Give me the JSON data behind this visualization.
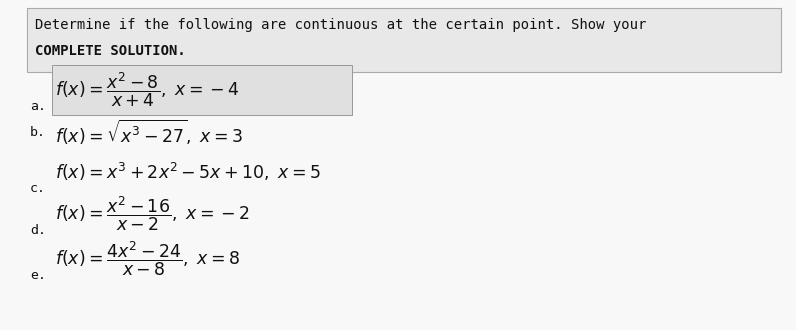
{
  "title_line1": "Determine if the following are continuous at the certain point. Show your",
  "title_line2": "COMPLETE SOLUTION.",
  "text_color": "#111111",
  "header_bg": "#e8e8e8",
  "header_border": "#aaaaaa",
  "item_box_bg": "#e0e0e0",
  "item_box_border": "#999999",
  "page_bg": "#f8f8f8",
  "items": [
    {
      "label": "a.",
      "math": "$f(x) = \\dfrac{x^2-8}{x+4},\\ x = -4$",
      "boxed": true,
      "label_below": true
    },
    {
      "label": "b.",
      "math": "$f(x) = \\sqrt{x^3 - 27},\\ x = 3$",
      "boxed": false,
      "label_below": false
    },
    {
      "label": "c.",
      "math": "$f(x) = x^3 + 2x^2 - 5x + 10,\\ x = 5$",
      "boxed": false,
      "label_below": true
    },
    {
      "label": "d.",
      "math": "$f(x) = \\dfrac{x^2-16}{x-2},\\ x = -2$",
      "boxed": false,
      "label_below": true
    },
    {
      "label": "e.",
      "math": "$f(x) = \\dfrac{4x^2-24}{x-8},\\ x = 8$",
      "boxed": false,
      "label_below": true
    }
  ],
  "header_fontsize": 10.0,
  "item_fontsize": 12.5,
  "label_fontsize": 9.5,
  "fig_width": 7.96,
  "fig_height": 3.3,
  "dpi": 100
}
